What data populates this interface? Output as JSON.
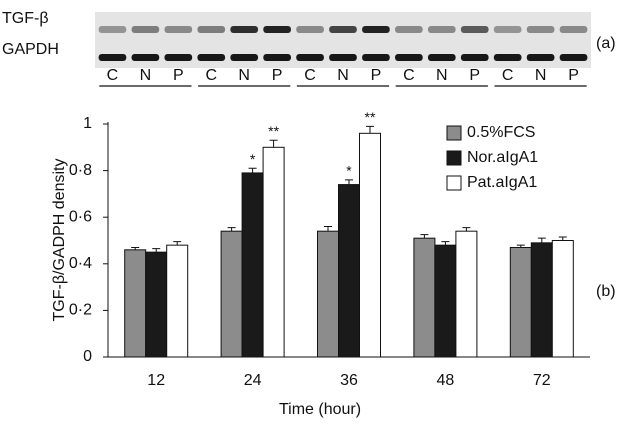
{
  "blot": {
    "rows": [
      "TGF-β",
      "GAPDH"
    ],
    "lanes": [
      "C",
      "N",
      "P",
      "C",
      "N",
      "P",
      "C",
      "N",
      "P",
      "C",
      "N",
      "P",
      "C",
      "N",
      "P"
    ],
    "panel_label": "(a)"
  },
  "chart_data": {
    "type": "bar",
    "panel_label": "(b)",
    "xlabel": "Time (hour)",
    "ylabel": "TGF-β/GADPH density",
    "categories": [
      "12",
      "24",
      "36",
      "48",
      "72"
    ],
    "series": [
      {
        "name": "0.5%FCS",
        "color": "#8c8c8c",
        "values": [
          0.46,
          0.54,
          0.54,
          0.51,
          0.47
        ],
        "errors": [
          0.01,
          0.015,
          0.02,
          0.015,
          0.01
        ]
      },
      {
        "name": "Nor.aIgA1",
        "color": "#1a1a1a",
        "values": [
          0.45,
          0.79,
          0.74,
          0.48,
          0.49
        ],
        "errors": [
          0.015,
          0.02,
          0.02,
          0.015,
          0.02
        ]
      },
      {
        "name": "Pat.aIgA1",
        "color": "#ffffff",
        "values": [
          0.48,
          0.9,
          0.96,
          0.54,
          0.5
        ],
        "errors": [
          0.015,
          0.03,
          0.03,
          0.015,
          0.015
        ]
      }
    ],
    "annotations": [
      {
        "text": "*",
        "series": 1,
        "category": 1
      },
      {
        "text": "**",
        "series": 2,
        "category": 1
      },
      {
        "text": "*",
        "series": 1,
        "category": 2
      },
      {
        "text": "**",
        "series": 2,
        "category": 2
      }
    ],
    "ylim": [
      0,
      1
    ],
    "yticks": [
      0,
      {
        "value": 0.2,
        "label": "0·2"
      },
      {
        "value": 0.4,
        "label": "0·4"
      },
      {
        "value": 0.6,
        "label": "0·6"
      },
      {
        "value": 0.8,
        "label": "0·8"
      },
      1
    ],
    "legend": "upper right"
  }
}
